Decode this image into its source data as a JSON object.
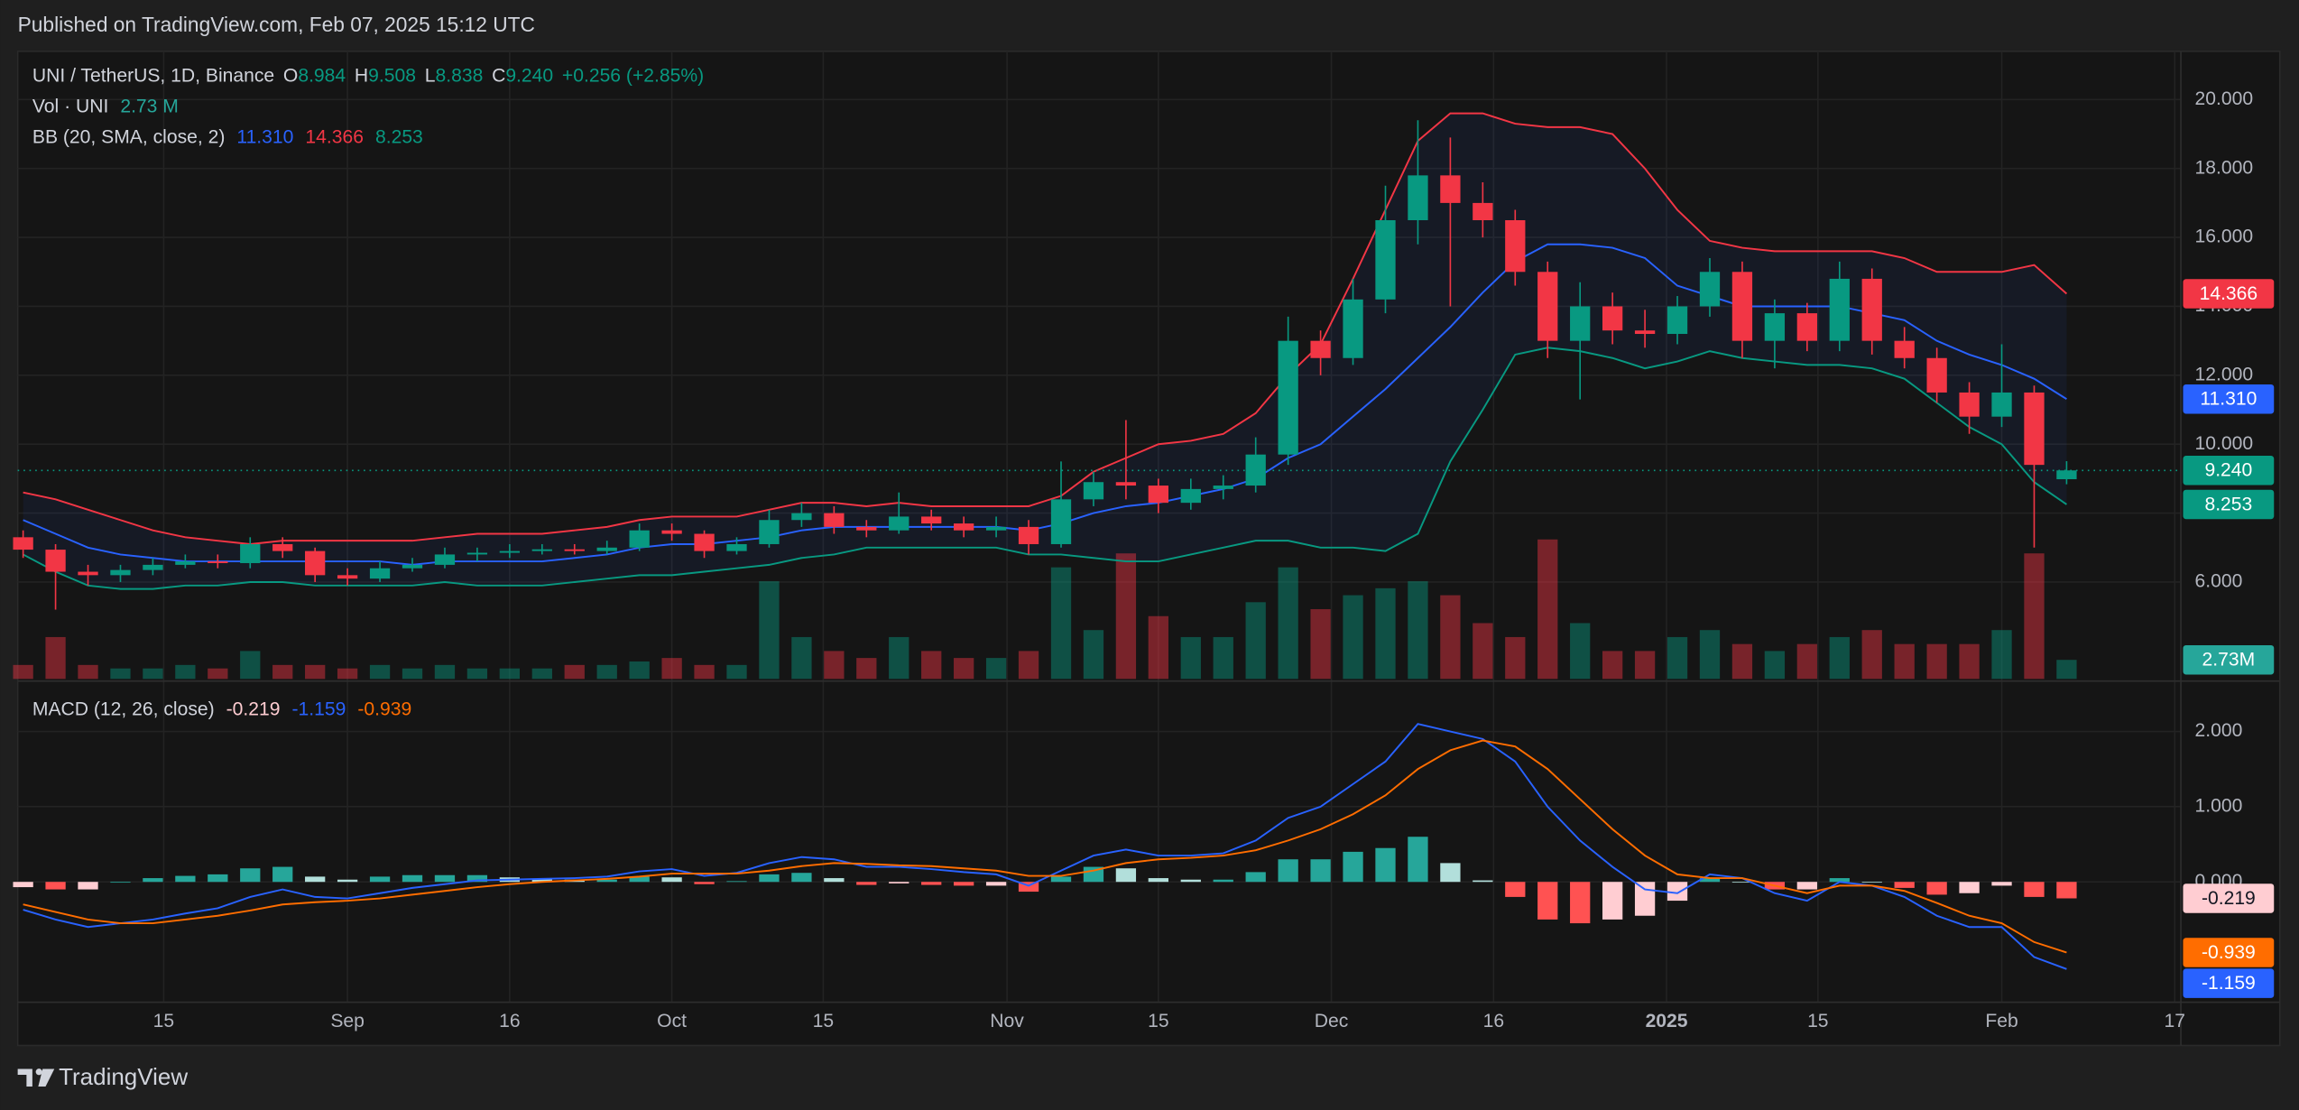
{
  "header": {
    "published": "Published on TradingView.com, Feb 07, 2025 15:12 UTC",
    "brand": "TradingView"
  },
  "chart_data": {
    "type": "candlestick",
    "symbol": "UNI / TetherUS, 1D, Binance",
    "legend_ohlc": [
      {
        "label": "O",
        "value": "8.984"
      },
      {
        "label": "H",
        "value": "9.508"
      },
      {
        "label": "L",
        "value": "8.838"
      },
      {
        "label": "C",
        "value": "9.240"
      }
    ],
    "change": "+0.256 (+2.85%)",
    "last_price_label": "9.240",
    "up_color": "#089981",
    "down_color": "#f23645",
    "grid": true,
    "x": [
      0,
      3,
      6,
      9,
      12,
      15,
      18,
      21,
      24,
      27,
      30,
      33,
      36,
      39,
      42,
      45,
      48,
      51,
      54,
      57,
      60,
      63,
      66,
      69,
      72,
      75,
      78,
      81,
      84,
      87,
      90,
      93,
      96,
      99,
      102,
      105,
      108,
      111,
      114,
      117,
      120,
      123,
      126,
      129,
      132,
      135,
      138,
      141,
      144,
      147,
      150,
      153,
      156,
      159,
      162,
      165,
      168,
      171,
      174,
      177,
      180,
      183,
      186,
      189
    ],
    "xlim": [
      -0.5,
      199.5
    ],
    "xticks": [
      {
        "value": 13,
        "label": "15"
      },
      {
        "value": 30,
        "label": "Sep"
      },
      {
        "value": 45,
        "label": "16"
      },
      {
        "value": 60,
        "label": "Oct"
      },
      {
        "value": 74,
        "label": "15"
      },
      {
        "value": 91,
        "label": "Nov"
      },
      {
        "value": 105,
        "label": "15"
      },
      {
        "value": 121,
        "label": "Dec"
      },
      {
        "value": 136,
        "label": "16"
      },
      {
        "value": 152,
        "label": "2025",
        "bold": true
      },
      {
        "value": 166,
        "label": "15"
      },
      {
        "value": 183,
        "label": "Feb"
      },
      {
        "value": 199,
        "label": "17"
      }
    ],
    "ylim": [
      3.19,
      21.4
    ],
    "yticks": [
      {
        "value": 6,
        "label": "6.000"
      },
      {
        "value": 8,
        "label": "8.000"
      },
      {
        "value": 10,
        "label": "10.000"
      },
      {
        "value": 12,
        "label": "12.000"
      },
      {
        "value": 14,
        "label": "14.000"
      },
      {
        "value": 16,
        "label": "16.000"
      },
      {
        "value": 18,
        "label": "18.000"
      },
      {
        "value": 20,
        "label": "20.000"
      }
    ],
    "open": [
      7.3,
      6.94,
      6.3,
      6.2,
      6.35,
      6.5,
      6.6,
      6.55,
      7.1,
      6.9,
      6.2,
      6.1,
      6.4,
      6.5,
      6.8,
      6.85,
      6.9,
      6.95,
      6.9,
      7.0,
      7.5,
      7.4,
      6.9,
      7.1,
      7.8,
      8.0,
      7.6,
      7.5,
      7.9,
      7.7,
      7.5,
      7.6,
      7.1,
      8.4,
      8.9,
      8.8,
      8.3,
      8.7,
      8.8,
      9.7,
      13.0,
      12.5,
      14.2,
      16.5,
      17.8,
      17.0,
      16.5,
      15.0,
      13.0,
      14.0,
      13.3,
      13.2,
      14.0,
      15.0,
      13.0,
      13.8,
      13.0,
      14.8,
      13.0,
      12.5,
      11.5,
      10.8,
      11.5,
      8.984
    ],
    "high": [
      7.5,
      7.1,
      6.5,
      6.5,
      6.7,
      6.8,
      6.8,
      7.3,
      7.3,
      7.0,
      6.4,
      6.6,
      6.7,
      7.0,
      7.0,
      7.1,
      7.1,
      7.1,
      7.2,
      7.7,
      7.7,
      7.5,
      7.3,
      8.1,
      8.3,
      8.2,
      7.8,
      8.6,
      8.1,
      7.9,
      7.9,
      7.8,
      9.5,
      9.2,
      10.7,
      9.0,
      9.0,
      9.1,
      10.2,
      13.7,
      13.3,
      14.8,
      17.5,
      19.4,
      18.9,
      17.6,
      16.8,
      15.3,
      14.7,
      14.4,
      13.9,
      14.3,
      15.4,
      15.3,
      14.2,
      14.1,
      15.3,
      15.1,
      13.4,
      12.8,
      11.8,
      12.9,
      11.7,
      9.508
    ],
    "low": [
      6.7,
      5.2,
      5.9,
      6.0,
      6.2,
      6.4,
      6.4,
      6.4,
      6.7,
      6.0,
      5.9,
      6.0,
      6.3,
      6.4,
      6.6,
      6.7,
      6.8,
      6.8,
      6.8,
      6.9,
      7.2,
      6.7,
      6.8,
      7.0,
      7.6,
      7.4,
      7.3,
      7.4,
      7.5,
      7.3,
      7.3,
      6.8,
      7.0,
      8.2,
      8.4,
      8.0,
      8.1,
      8.4,
      8.6,
      9.4,
      12.0,
      12.3,
      13.8,
      15.8,
      14.0,
      16.0,
      14.6,
      12.5,
      11.3,
      12.9,
      12.8,
      12.9,
      13.7,
      12.5,
      12.2,
      12.7,
      12.7,
      12.6,
      12.2,
      11.2,
      10.3,
      10.5,
      7.0,
      8.838
    ],
    "close": [
      6.94,
      6.3,
      6.2,
      6.35,
      6.5,
      6.6,
      6.55,
      7.1,
      6.9,
      6.2,
      6.1,
      6.4,
      6.5,
      6.8,
      6.85,
      6.9,
      6.95,
      6.9,
      7.0,
      7.5,
      7.4,
      6.9,
      7.1,
      7.8,
      8.0,
      7.6,
      7.5,
      7.9,
      7.7,
      7.5,
      7.6,
      7.1,
      8.4,
      8.9,
      8.8,
      8.3,
      8.7,
      8.8,
      9.7,
      13.0,
      12.5,
      14.2,
      16.5,
      17.8,
      17.0,
      16.5,
      15.0,
      13.0,
      14.0,
      13.3,
      13.2,
      14.0,
      15.0,
      13.0,
      13.8,
      13.0,
      14.8,
      13.0,
      12.5,
      11.5,
      10.8,
      11.5,
      9.4,
      9.24
    ],
    "volume": {
      "label": "Vol · UNI",
      "legend_value": "2.73 M",
      "axis_label": "2.73M",
      "ylim": [
        0,
        90
      ],
      "values": [
        2,
        6,
        2,
        1.5,
        1.5,
        2,
        1.5,
        4,
        2,
        2,
        1.5,
        2,
        1.5,
        2,
        1.5,
        1.5,
        1.5,
        2,
        2,
        2.5,
        3,
        2,
        2,
        14,
        6,
        4,
        3,
        6,
        4,
        3,
        3,
        4,
        16,
        7,
        18,
        9,
        6,
        6,
        11,
        16,
        10,
        12,
        13,
        14,
        12,
        8,
        6,
        20,
        8,
        4,
        4,
        6,
        7,
        5,
        4,
        5,
        6,
        7,
        5,
        5,
        5,
        7,
        18,
        2.73
      ]
    },
    "bb": {
      "label": "BB (20, SMA, close, 2)",
      "fill": "rgba(41,98,255,0.07)",
      "lines": [
        {
          "color": "#2962ff",
          "last_label": "11.310",
          "values": [
            7.8,
            7.4,
            7.0,
            6.8,
            6.7,
            6.6,
            6.6,
            6.6,
            6.6,
            6.6,
            6.6,
            6.6,
            6.5,
            6.6,
            6.6,
            6.6,
            6.6,
            6.7,
            6.8,
            7.0,
            7.1,
            7.1,
            7.2,
            7.3,
            7.5,
            7.6,
            7.6,
            7.6,
            7.6,
            7.6,
            7.6,
            7.5,
            7.7,
            8.0,
            8.2,
            8.3,
            8.5,
            8.7,
            9.0,
            9.6,
            10.0,
            10.8,
            11.6,
            12.5,
            13.4,
            14.4,
            15.3,
            15.8,
            15.8,
            15.7,
            15.4,
            14.6,
            14.3,
            14.0,
            14.0,
            14.0,
            14.0,
            13.8,
            13.6,
            13.0,
            12.6,
            12.3,
            11.9,
            11.31
          ]
        },
        {
          "color": "#f23645",
          "last_label": "14.366",
          "values": [
            8.6,
            8.4,
            8.1,
            7.8,
            7.5,
            7.3,
            7.2,
            7.1,
            7.2,
            7.2,
            7.2,
            7.2,
            7.2,
            7.3,
            7.4,
            7.4,
            7.4,
            7.5,
            7.6,
            7.8,
            7.9,
            7.9,
            7.9,
            8.1,
            8.3,
            8.3,
            8.2,
            8.3,
            8.2,
            8.2,
            8.2,
            8.2,
            8.5,
            9.2,
            9.6,
            10.0,
            10.1,
            10.3,
            10.9,
            12.0,
            12.9,
            14.8,
            16.8,
            18.8,
            19.6,
            19.6,
            19.3,
            19.2,
            19.2,
            19.0,
            18.0,
            16.8,
            15.9,
            15.7,
            15.6,
            15.6,
            15.6,
            15.6,
            15.4,
            15.0,
            15.0,
            15.0,
            15.2,
            14.366
          ]
        },
        {
          "color": "#089981",
          "last_label": "8.253",
          "values": [
            6.8,
            6.3,
            5.9,
            5.8,
            5.8,
            5.9,
            5.9,
            6.0,
            6.0,
            5.9,
            5.9,
            5.9,
            5.9,
            6.0,
            5.9,
            5.9,
            5.9,
            6.0,
            6.1,
            6.2,
            6.2,
            6.3,
            6.4,
            6.5,
            6.7,
            6.8,
            7.0,
            7.0,
            7.0,
            7.0,
            7.0,
            6.8,
            6.8,
            6.7,
            6.6,
            6.6,
            6.8,
            7.0,
            7.2,
            7.2,
            7.0,
            7.0,
            6.9,
            7.4,
            9.5,
            11.0,
            12.6,
            12.8,
            12.7,
            12.5,
            12.2,
            12.4,
            12.7,
            12.5,
            12.4,
            12.3,
            12.3,
            12.2,
            11.9,
            11.2,
            10.5,
            10.0,
            8.9,
            8.253
          ]
        }
      ]
    },
    "macd": {
      "label": "MACD (12, 26, close)",
      "ylim": [
        -1.59,
        2.64
      ],
      "yticks": [
        {
          "value": 0,
          "label": "0.000"
        },
        {
          "value": 1,
          "label": "1.000"
        },
        {
          "value": 2,
          "label": "2.000"
        }
      ],
      "histogram": {
        "last_label": "-0.219",
        "colors": [
          "#26a69a",
          "#b2dfdb",
          "#ff5252",
          "#ffcdd2"
        ],
        "values": [
          -0.07,
          -0.1,
          -0.1,
          0,
          0.05,
          0.08,
          0.1,
          0.18,
          0.2,
          0.07,
          0.03,
          0.07,
          0.09,
          0.09,
          0.09,
          0.06,
          0.04,
          0.03,
          0.03,
          0.07,
          0.06,
          -0.03,
          0.01,
          0.1,
          0.12,
          0.05,
          -0.04,
          -0.02,
          -0.04,
          -0.05,
          -0.05,
          -0.13,
          0.07,
          0.2,
          0.18,
          0.05,
          0.03,
          0.03,
          0.13,
          0.3,
          0.3,
          0.4,
          0.45,
          0.6,
          0.25,
          0.02,
          -0.2,
          -0.5,
          -0.55,
          -0.5,
          -0.45,
          -0.25,
          0.05,
          0,
          -0.1,
          -0.1,
          0.05,
          0,
          -0.08,
          -0.17,
          -0.15,
          -0.05,
          -0.2,
          -0.219
        ]
      },
      "lines": [
        {
          "color": "#2962ff",
          "last_label": "-1.159",
          "values": [
            -0.37,
            -0.5,
            -0.6,
            -0.55,
            -0.5,
            -0.42,
            -0.35,
            -0.2,
            -0.1,
            -0.2,
            -0.22,
            -0.15,
            -0.08,
            -0.03,
            0.02,
            0.03,
            0.04,
            0.05,
            0.07,
            0.14,
            0.17,
            0.08,
            0.12,
            0.25,
            0.33,
            0.3,
            0.2,
            0.2,
            0.17,
            0.13,
            0.1,
            -0.05,
            0.15,
            0.35,
            0.43,
            0.35,
            0.35,
            0.38,
            0.55,
            0.85,
            1.0,
            1.3,
            1.6,
            2.1,
            2.0,
            1.9,
            1.6,
            1.0,
            0.55,
            0.2,
            -0.1,
            -0.15,
            0.1,
            0.05,
            -0.15,
            -0.25,
            0.0,
            -0.05,
            -0.2,
            -0.45,
            -0.6,
            -0.6,
            -1.0,
            -1.159
          ]
        },
        {
          "color": "#ff6d00",
          "last_label": "-0.939",
          "values": [
            -0.3,
            -0.4,
            -0.5,
            -0.55,
            -0.55,
            -0.5,
            -0.45,
            -0.38,
            -0.3,
            -0.27,
            -0.25,
            -0.22,
            -0.17,
            -0.12,
            -0.07,
            -0.03,
            0.0,
            0.02,
            0.04,
            0.07,
            0.11,
            0.11,
            0.11,
            0.15,
            0.21,
            0.25,
            0.24,
            0.22,
            0.21,
            0.18,
            0.15,
            0.08,
            0.08,
            0.15,
            0.25,
            0.3,
            0.32,
            0.35,
            0.42,
            0.55,
            0.7,
            0.9,
            1.15,
            1.5,
            1.75,
            1.88,
            1.8,
            1.5,
            1.1,
            0.7,
            0.35,
            0.1,
            0.05,
            0.05,
            -0.05,
            -0.15,
            -0.05,
            -0.05,
            -0.12,
            -0.28,
            -0.45,
            -0.55,
            -0.8,
            -0.939
          ]
        }
      ]
    }
  }
}
